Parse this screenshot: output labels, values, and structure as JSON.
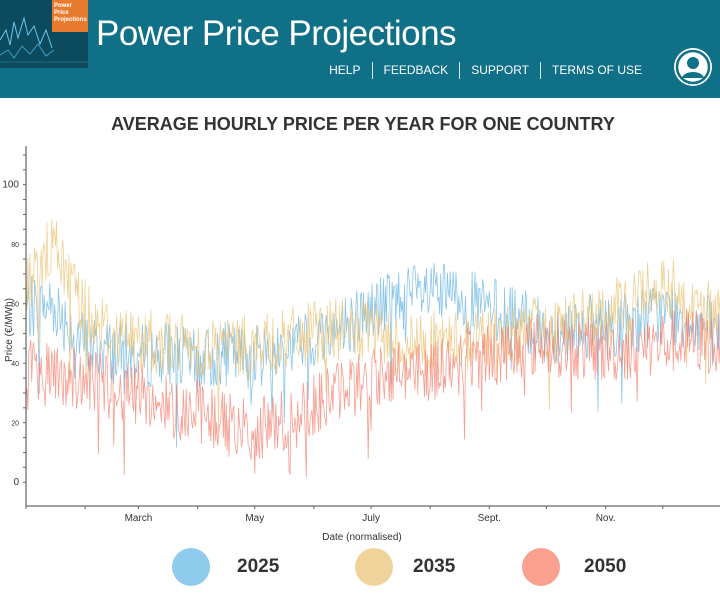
{
  "header": {
    "logo_lines": [
      "Power",
      "Price",
      "Projections"
    ],
    "title": "Power Price Projections",
    "nav": [
      "HELP",
      "FEEDBACK",
      "SUPPORT",
      "TERMS OF USE"
    ],
    "user_icon": "user-circle-icon"
  },
  "chart_data": {
    "type": "line",
    "title": "AVERAGE HOURLY PRICE PER YEAR FOR ONE COUNTRY",
    "xlabel": "Date (normalised)",
    "ylabel": "Price (€/MWh)",
    "x_ticks": [
      {
        "label": "March",
        "date": "03-01"
      },
      {
        "label": "May",
        "date": "05-01"
      },
      {
        "label": "July",
        "date": "07-01"
      },
      {
        "label": "Sept.",
        "date": "09-01"
      },
      {
        "label": "Nov.",
        "date": "11-01"
      }
    ],
    "y_ticks": [
      0,
      20,
      40,
      60,
      80,
      100
    ],
    "ylim": [
      -8,
      113
    ],
    "xlim": [
      "01-01",
      "12-31"
    ],
    "grid": false,
    "legend_position": "bottom",
    "series": [
      {
        "name": "2025",
        "color": "#63b3e3",
        "dates": [
          "01-01",
          "01-15",
          "02-01",
          "02-15",
          "03-01",
          "03-15",
          "04-01",
          "04-15",
          "05-01",
          "05-15",
          "06-01",
          "06-15",
          "07-01",
          "07-15",
          "08-01",
          "08-15",
          "09-01",
          "09-15",
          "10-01",
          "10-15",
          "11-01",
          "11-15",
          "12-01",
          "12-15",
          "12-31"
        ],
        "values": [
          58,
          60,
          46,
          44,
          42,
          44,
          40,
          43,
          42,
          45,
          48,
          52,
          58,
          62,
          63,
          62,
          58,
          55,
          50,
          52,
          52,
          54,
          57,
          55,
          50
        ]
      },
      {
        "name": "2035",
        "color": "#ebc171",
        "dates": [
          "01-01",
          "01-15",
          "02-01",
          "02-15",
          "03-01",
          "03-15",
          "04-01",
          "04-15",
          "05-01",
          "05-15",
          "06-01",
          "06-15",
          "07-01",
          "07-15",
          "08-01",
          "08-15",
          "09-01",
          "09-15",
          "10-01",
          "10-15",
          "11-01",
          "11-15",
          "12-01",
          "12-15",
          "12-31"
        ],
        "values": [
          65,
          80,
          58,
          50,
          48,
          47,
          45,
          46,
          45,
          47,
          50,
          51,
          50,
          46,
          47,
          47,
          49,
          50,
          52,
          54,
          55,
          62,
          68,
          60,
          55
        ]
      },
      {
        "name": "2050",
        "color": "#f47e6c",
        "dates": [
          "01-01",
          "01-15",
          "02-01",
          "02-15",
          "03-01",
          "03-15",
          "04-01",
          "04-15",
          "05-01",
          "05-15",
          "06-01",
          "06-15",
          "07-01",
          "07-15",
          "08-01",
          "08-15",
          "09-01",
          "09-15",
          "10-01",
          "10-15",
          "11-01",
          "11-15",
          "12-01",
          "12-15",
          "12-31"
        ],
        "values": [
          38,
          36,
          34,
          32,
          30,
          26,
          24,
          20,
          17,
          20,
          26,
          31,
          35,
          38,
          38,
          40,
          43,
          45,
          47,
          45,
          44,
          45,
          47,
          48,
          46
        ]
      }
    ]
  }
}
